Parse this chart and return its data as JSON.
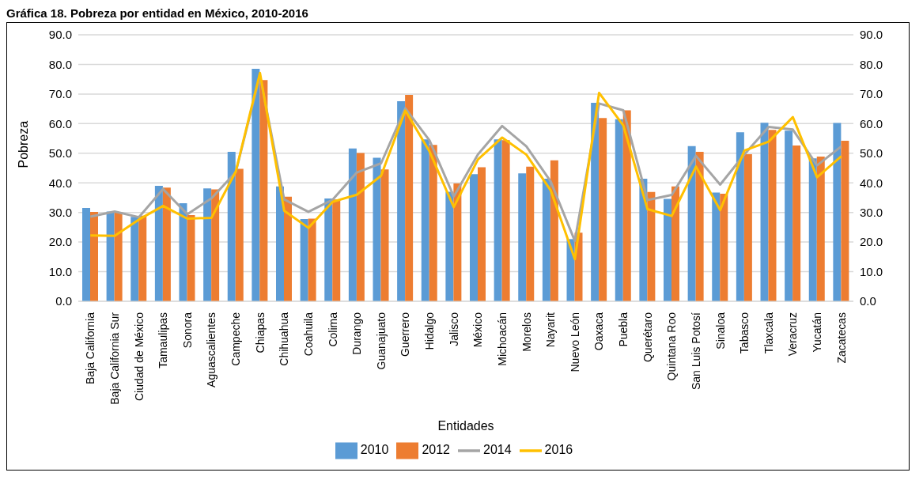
{
  "chart_data": {
    "type": "bar",
    "title": "Gráfica 18. Pobreza por entidad en México, 2010-2016",
    "xlabel": "Entidades",
    "ylabel": "Pobreza",
    "categories": [
      "Baja California",
      "Baja California Sur",
      "Ciudad de México",
      "Tamaulipas",
      "Sonora",
      "Aguascalientes",
      "Campeche",
      "Chiapas",
      "Chihuahua",
      "Coahuila",
      "Colima",
      "Durango",
      "Guanajuato",
      "Guerrero",
      "Hidalgo",
      "Jalisco",
      "México",
      "Michoacán",
      "Morelos",
      "Nayarit",
      "Nuevo León",
      "Oaxaca",
      "Puebla",
      "Querétaro",
      "Quintana Roo",
      "San Luis Potosí",
      "Sinaloa",
      "Tabasco",
      "Tlaxcala",
      "Veracruz",
      "Yucatán",
      "Zacatecas"
    ],
    "series": [
      {
        "name": "2010",
        "color": "#5b9bd5",
        "values": [
          31.5,
          30.3,
          28.5,
          39.0,
          33.1,
          38.1,
          50.5,
          78.5,
          38.8,
          27.8,
          34.7,
          51.6,
          48.5,
          67.6,
          54.7,
          37.0,
          42.9,
          54.7,
          43.2,
          41.4,
          21.0,
          67.0,
          61.5,
          41.4,
          34.6,
          52.4,
          36.7,
          57.1,
          60.3,
          57.6,
          48.3,
          60.2
        ]
      },
      {
        "name": "2012",
        "color": "#ed7d31",
        "values": [
          30.2,
          30.1,
          28.9,
          38.4,
          29.1,
          37.8,
          44.7,
          74.7,
          35.3,
          27.9,
          34.4,
          50.1,
          44.5,
          69.7,
          52.8,
          39.8,
          45.3,
          54.4,
          45.5,
          47.6,
          23.2,
          61.9,
          64.5,
          36.9,
          38.8,
          50.5,
          36.3,
          49.7,
          57.9,
          52.6,
          48.9,
          54.2
        ]
      },
      {
        "name": "2014",
        "type": "line",
        "color": "#a5a5a5",
        "values": [
          28.6,
          30.3,
          28.4,
          37.9,
          29.4,
          34.8,
          43.6,
          76.2,
          34.4,
          30.2,
          34.3,
          43.5,
          46.6,
          65.2,
          54.3,
          35.4,
          49.6,
          59.2,
          52.3,
          40.5,
          20.4,
          66.8,
          64.5,
          34.2,
          35.9,
          49.1,
          39.4,
          49.6,
          58.9,
          58.0,
          45.9,
          52.3
        ]
      },
      {
        "name": "2016",
        "type": "line",
        "color": "#ffc000",
        "values": [
          22.2,
          22.1,
          27.6,
          32.2,
          27.9,
          28.2,
          43.8,
          77.1,
          30.6,
          24.8,
          33.6,
          36.0,
          42.4,
          64.4,
          50.6,
          31.8,
          47.9,
          55.3,
          49.5,
          37.5,
          14.2,
          70.4,
          59.4,
          31.1,
          28.8,
          45.5,
          30.8,
          50.9,
          53.9,
          62.2,
          41.9,
          49.0
        ]
      }
    ],
    "ylim": [
      0,
      90
    ],
    "yticks": [
      {
        "value": 0,
        "label": "0.0"
      },
      {
        "value": 10,
        "label": "10.0"
      },
      {
        "value": 20,
        "label": "20.0"
      },
      {
        "value": 30,
        "label": "30.0"
      },
      {
        "value": 40,
        "label": "40.0"
      },
      {
        "value": 50,
        "label": "50.0"
      },
      {
        "value": 60,
        "label": "60.0"
      },
      {
        "value": 70,
        "label": "70.0"
      },
      {
        "value": 80,
        "label": "80.0"
      },
      {
        "value": 90,
        "label": "90.0"
      }
    ],
    "y2lim": [
      0,
      90
    ],
    "y2ticks": [
      {
        "value": 0,
        "label": "0.0"
      },
      {
        "value": 10,
        "label": "10.0"
      },
      {
        "value": 20,
        "label": "20.0"
      },
      {
        "value": 30,
        "label": "30.0"
      },
      {
        "value": 40,
        "label": "40.0"
      },
      {
        "value": 50,
        "label": "50.0"
      },
      {
        "value": 60,
        "label": "60.0"
      },
      {
        "value": 70,
        "label": "70.0"
      },
      {
        "value": 80,
        "label": "80.0"
      },
      {
        "value": 90,
        "label": "90.0"
      }
    ],
    "grid": "y",
    "legend": "bottom",
    "marker": "none"
  }
}
